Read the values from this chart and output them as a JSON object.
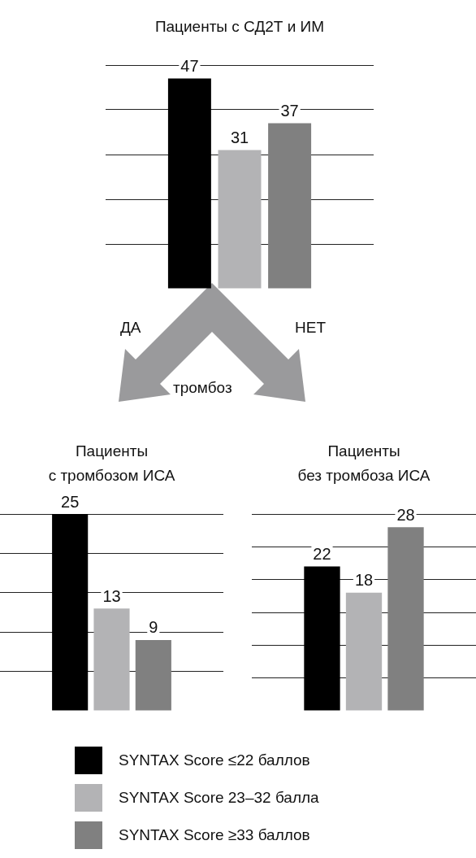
{
  "chart_data": [
    {
      "type": "bar",
      "title": "Пациенты с СД2Т и ИМ",
      "categories": [
        null
      ],
      "series": [
        {
          "name": "SYNTAX Score ≤22 баллов",
          "color": "#000000",
          "values": [
            47
          ]
        },
        {
          "name": "SYNTAX Score 23–32 балла",
          "color": "#b3b3b5",
          "values": [
            31
          ]
        },
        {
          "name": "SYNTAX Score ≥33 баллов",
          "color": "#808080",
          "values": [
            37
          ]
        }
      ],
      "grid": "y",
      "tick_labels": false,
      "data_labels": true,
      "legend": "bottom",
      "annotations": [
        "ДА",
        "НЕТ",
        "тромбоз"
      ]
    },
    {
      "type": "bar",
      "title": "Пациенты\nс тромбозом ИСА",
      "categories": [
        null
      ],
      "series": [
        {
          "color": "#000000",
          "values": [
            25
          ]
        },
        {
          "color": "#b3b3b5",
          "values": [
            13
          ]
        },
        {
          "color": "#808080",
          "values": [
            9
          ]
        }
      ],
      "grid": "y",
      "tick_labels": false,
      "data_labels": true
    },
    {
      "type": "bar",
      "title": "Пациенты\nбез тромбоза ИСА",
      "categories": [
        null
      ],
      "series": [
        {
          "color": "#000000",
          "values": [
            22
          ]
        },
        {
          "color": "#b3b3b5",
          "values": [
            18
          ]
        },
        {
          "color": "#808080",
          "values": [
            28
          ]
        }
      ],
      "grid": "y",
      "tick_labels": false,
      "data_labels": true
    }
  ]
}
